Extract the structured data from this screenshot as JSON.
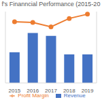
{
  "chart_data": {
    "type": "bar",
    "title": "f's Finanncial Performance (2015-20",
    "categories": [
      "2015",
      "2016",
      "2017",
      "2018",
      "2019"
    ],
    "series": [
      {
        "name": "Revenue",
        "type": "bar",
        "color": "#4472c4",
        "values": [
          43,
          70,
          66,
          40,
          40
        ]
      },
      {
        "name": "Profit Margin",
        "type": "line",
        "color": "#ed7d31",
        "marker": "circle",
        "axis": "y2",
        "values": [
          25.7,
          25.4,
          23.6,
          27.1,
          28.9
        ]
      }
    ],
    "ylim": [
      0,
      100
    ],
    "y2lim": [
      0,
      30
    ],
    "grid": false,
    "legend": "bottom",
    "tick_labels": "x"
  }
}
